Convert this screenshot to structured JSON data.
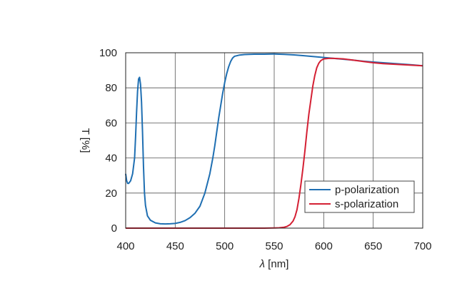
{
  "chart_data": {
    "type": "line",
    "title": "",
    "xlabel": "λ [nm]",
    "xlabel_parts": {
      "symbol": "λ",
      "unit": " [nm]"
    },
    "ylabel": "T [%]",
    "xlim": [
      400,
      700
    ],
    "ylim": [
      0,
      100
    ],
    "xticks": [
      400,
      450,
      500,
      550,
      600,
      650,
      700
    ],
    "yticks": [
      0,
      20,
      40,
      60,
      80,
      100
    ],
    "grid": true,
    "legend_position": "bottom-right",
    "series": [
      {
        "name": "p-polarization",
        "color": "#1f6fb2",
        "x": [
          400,
          401,
          402,
          403,
          405,
          407,
          409,
          410,
          411,
          412,
          413,
          414,
          415,
          416,
          417,
          418,
          419,
          420,
          422,
          425,
          430,
          435,
          440,
          445,
          450,
          455,
          460,
          465,
          470,
          475,
          480,
          485,
          488,
          490,
          492,
          494,
          496,
          498,
          500,
          502,
          504,
          506,
          508,
          510,
          515,
          520,
          530,
          540,
          550,
          560,
          570,
          580,
          590,
          600,
          610,
          620,
          630,
          640,
          650,
          660,
          670,
          680,
          690,
          700
        ],
        "y": [
          31,
          27,
          25.5,
          25.5,
          27,
          31,
          40,
          52,
          66,
          78,
          85,
          86,
          82,
          72,
          55,
          35,
          20,
          13,
          7,
          4.5,
          3,
          2.5,
          2.4,
          2.5,
          2.7,
          3.3,
          4.3,
          6,
          8.5,
          12.5,
          20,
          31,
          40,
          47,
          55,
          63,
          70,
          77,
          83,
          88,
          92,
          95,
          97,
          98,
          98.7,
          99,
          99.2,
          99.2,
          99.3,
          99.1,
          98.8,
          98.3,
          97.8,
          97.3,
          96.8,
          96.3,
          95.8,
          95.2,
          94.7,
          94.3,
          93.9,
          93.5,
          93.1,
          92.6
        ]
      },
      {
        "name": "s-polarization",
        "color": "#d42034",
        "x": [
          400,
          450,
          500,
          540,
          550,
          555,
          560,
          563,
          566,
          569,
          571,
          573,
          575,
          577,
          579,
          581,
          583,
          585,
          587,
          589,
          591,
          593,
          595,
          597,
          600,
          605,
          610,
          620,
          630,
          640,
          650,
          660,
          670,
          680,
          690,
          700
        ],
        "y": [
          0,
          0,
          0,
          0,
          0.1,
          0.2,
          0.5,
          1,
          2,
          4,
          6.5,
          10.5,
          17,
          25,
          34,
          44,
          55,
          65,
          73,
          81,
          87,
          91.5,
          94,
          95.5,
          96.5,
          96.8,
          96.8,
          96.5,
          95.8,
          95,
          94.3,
          93.8,
          93.5,
          93.2,
          92.9,
          92.6
        ]
      }
    ]
  }
}
